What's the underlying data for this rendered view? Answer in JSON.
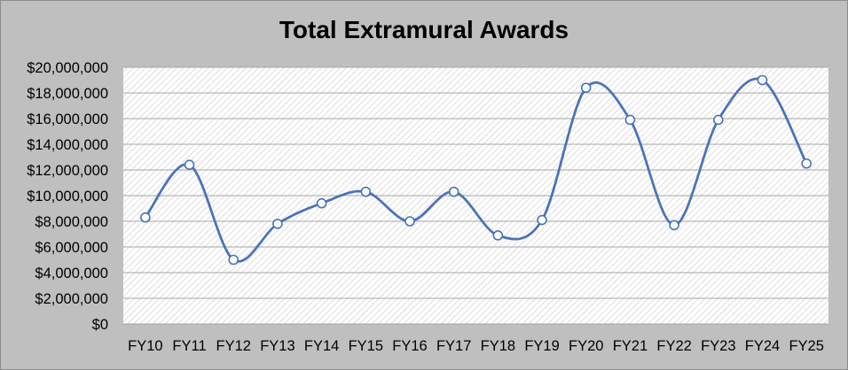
{
  "chart_data": {
    "type": "line",
    "title": "Total Extramural Awards",
    "xlabel": "",
    "ylabel": "",
    "categories": [
      "FY10",
      "FY11",
      "FY12",
      "FY13",
      "FY14",
      "FY15",
      "FY16",
      "FY17",
      "FY18",
      "FY19",
      "FY20",
      "FY21",
      "FY22",
      "FY23",
      "FY24",
      "FY25"
    ],
    "series": [
      {
        "values": [
          8300000,
          12400000,
          5000000,
          7800000,
          9400000,
          10300000,
          8000000,
          10300000,
          6900000,
          8100000,
          18400000,
          15900000,
          7700000,
          15900000,
          19000000,
          12500000
        ]
      }
    ],
    "ylim": [
      0,
      20000000
    ],
    "yticks": [
      0,
      2000000,
      4000000,
      6000000,
      8000000,
      10000000,
      12000000,
      14000000,
      16000000,
      18000000,
      20000000
    ],
    "ytick_labels": [
      "$0",
      "$2,000,000",
      "$4,000,000",
      "$6,000,000",
      "$8,000,000",
      "$10,000,000",
      "$12,000,000",
      "$14,000,000",
      "$16,000,000",
      "$18,000,000",
      "$20,000,000"
    ],
    "grid": true,
    "legend": "none",
    "line_smoothed": true,
    "colors": {
      "frame_background": "#bfbfbf",
      "plot_background": "#ffffff",
      "plot_hatch": "#d0d0d0",
      "gridline": "#a6a6a6",
      "series_line": "#4a72b8",
      "marker_fill": "#ffffff"
    }
  }
}
